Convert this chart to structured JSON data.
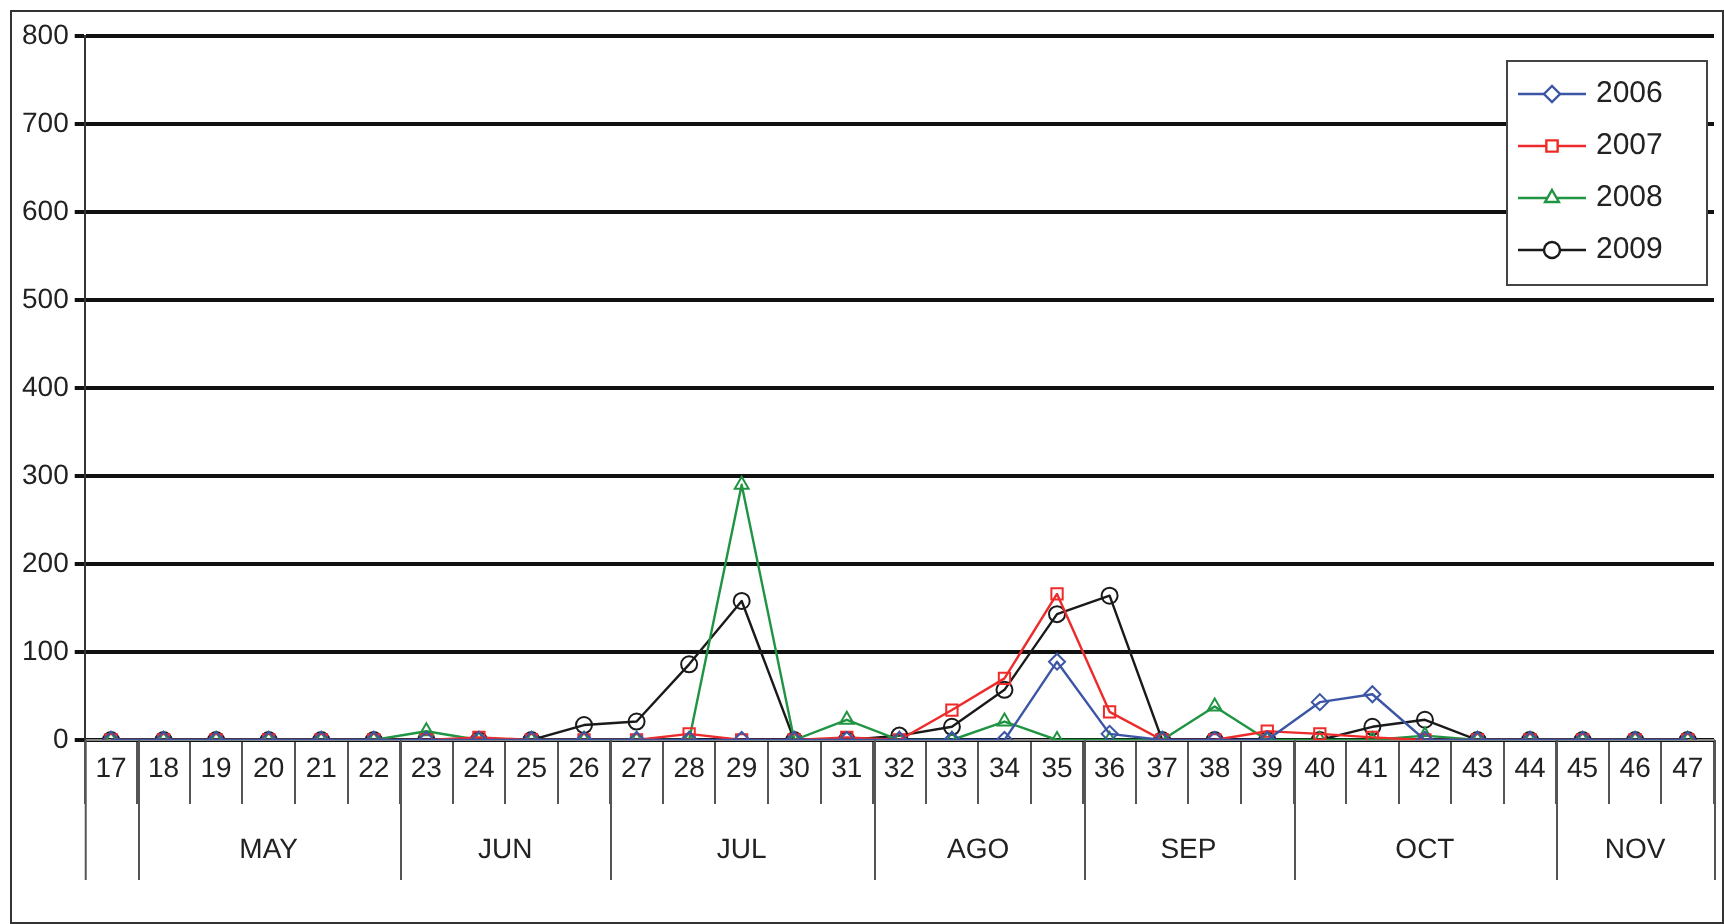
{
  "chart_data": {
    "type": "line",
    "categories": [
      "17",
      "18",
      "19",
      "20",
      "21",
      "22",
      "23",
      "24",
      "25",
      "26",
      "27",
      "28",
      "29",
      "30",
      "31",
      "32",
      "33",
      "34",
      "35",
      "36",
      "37",
      "38",
      "39",
      "40",
      "41",
      "42",
      "43",
      "44",
      "45",
      "46",
      "47"
    ],
    "series": [
      {
        "name": "2006",
        "color": "#3c55a5",
        "marker": "diamond",
        "values": [
          0,
          0,
          0,
          0,
          0,
          0,
          0,
          0,
          0,
          0,
          0,
          0,
          0,
          0,
          0,
          0,
          0,
          0,
          89,
          7,
          0,
          0,
          0,
          43,
          52,
          0,
          0,
          0,
          0,
          0,
          0
        ]
      },
      {
        "name": "2007",
        "color": "#ee2b2b",
        "marker": "square",
        "values": [
          0,
          0,
          0,
          0,
          0,
          0,
          0,
          3,
          0,
          0,
          0,
          7,
          0,
          0,
          3,
          0,
          34,
          70,
          166,
          32,
          0,
          0,
          10,
          7,
          3,
          0,
          0,
          0,
          0,
          0,
          0
        ]
      },
      {
        "name": "2008",
        "color": "#1f9442",
        "marker": "triangle",
        "values": [
          0,
          0,
          0,
          0,
          0,
          0,
          10,
          0,
          0,
          0,
          0,
          0,
          290,
          0,
          23,
          0,
          0,
          21,
          0,
          0,
          0,
          38,
          0,
          0,
          0,
          5,
          0,
          0,
          0,
          0,
          0
        ]
      },
      {
        "name": "2009",
        "color": "#1a1a1a",
        "marker": "circle",
        "values": [
          0,
          0,
          0,
          0,
          0,
          0,
          0,
          0,
          0,
          17,
          21,
          86,
          158,
          0,
          0,
          5,
          15,
          57,
          143,
          164,
          0,
          0,
          0,
          0,
          15,
          23,
          0,
          0,
          0,
          0,
          0
        ]
      }
    ],
    "ylim": [
      0,
      800
    ],
    "yticks": [
      0,
      100,
      200,
      300,
      400,
      500,
      600,
      700,
      800
    ],
    "grid": "y",
    "legend": "top right",
    "annotations": [
      "MAY",
      "JUN",
      "JUL",
      "AGO",
      "SEP",
      "OCT",
      "NOV"
    ]
  }
}
